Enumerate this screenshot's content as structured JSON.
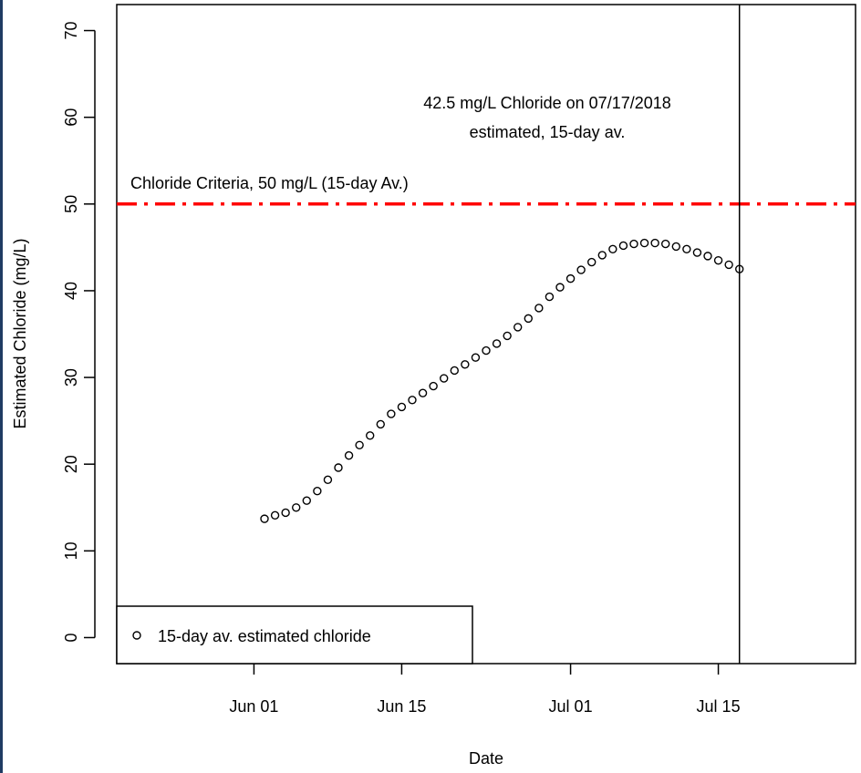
{
  "chart_data": {
    "type": "scatter",
    "xlabel": "Date",
    "ylabel": "Estimated Chloride (mg/L)",
    "x_type": "date",
    "xlim": [
      "2018-05-19",
      "2018-07-28"
    ],
    "ylim": [
      -3,
      73
    ],
    "x_ticks": [
      {
        "date": "2018-06-01",
        "label": "Jun 01"
      },
      {
        "date": "2018-06-15",
        "label": "Jun 15"
      },
      {
        "date": "2018-07-01",
        "label": "Jul 01"
      },
      {
        "date": "2018-07-15",
        "label": "Jul 15"
      }
    ],
    "y_ticks": [
      0,
      10,
      20,
      30,
      40,
      50,
      60,
      70
    ],
    "grid": false,
    "legend": {
      "position": "bottom-left",
      "entries": [
        "15-day av. estimated chloride"
      ]
    },
    "criteria_line": {
      "y": 50,
      "color": "#ff0000",
      "style": "dash-dot",
      "label": "Chloride Criteria, 50 mg/L (15-day Av.)"
    },
    "marker_line": {
      "x": "2018-07-17",
      "color": "#000000"
    },
    "annotation": {
      "line1": "42.5 mg/L Chloride on 07/17/2018",
      "line2": "estimated, 15-day av."
    },
    "series": [
      {
        "name": "15-day av. estimated chloride",
        "marker": "open-circle",
        "points": [
          [
            "2018-06-02",
            13.7
          ],
          [
            "2018-06-03",
            14.1
          ],
          [
            "2018-06-04",
            14.4
          ],
          [
            "2018-06-05",
            15.0
          ],
          [
            "2018-06-06",
            15.8
          ],
          [
            "2018-06-07",
            16.9
          ],
          [
            "2018-06-08",
            18.2
          ],
          [
            "2018-06-09",
            19.6
          ],
          [
            "2018-06-10",
            21.0
          ],
          [
            "2018-06-11",
            22.2
          ],
          [
            "2018-06-12",
            23.3
          ],
          [
            "2018-06-13",
            24.6
          ],
          [
            "2018-06-14",
            25.8
          ],
          [
            "2018-06-15",
            26.6
          ],
          [
            "2018-06-16",
            27.4
          ],
          [
            "2018-06-17",
            28.2
          ],
          [
            "2018-06-18",
            29.0
          ],
          [
            "2018-06-19",
            29.9
          ],
          [
            "2018-06-20",
            30.8
          ],
          [
            "2018-06-21",
            31.5
          ],
          [
            "2018-06-22",
            32.3
          ],
          [
            "2018-06-23",
            33.1
          ],
          [
            "2018-06-24",
            33.9
          ],
          [
            "2018-06-25",
            34.8
          ],
          [
            "2018-06-26",
            35.8
          ],
          [
            "2018-06-27",
            36.8
          ],
          [
            "2018-06-28",
            38.0
          ],
          [
            "2018-06-29",
            39.3
          ],
          [
            "2018-06-30",
            40.4
          ],
          [
            "2018-07-01",
            41.4
          ],
          [
            "2018-07-02",
            42.4
          ],
          [
            "2018-07-03",
            43.3
          ],
          [
            "2018-07-04",
            44.1
          ],
          [
            "2018-07-05",
            44.8
          ],
          [
            "2018-07-06",
            45.2
          ],
          [
            "2018-07-07",
            45.4
          ],
          [
            "2018-07-08",
            45.5
          ],
          [
            "2018-07-09",
            45.5
          ],
          [
            "2018-07-10",
            45.4
          ],
          [
            "2018-07-11",
            45.1
          ],
          [
            "2018-07-12",
            44.8
          ],
          [
            "2018-07-13",
            44.4
          ],
          [
            "2018-07-14",
            44.0
          ],
          [
            "2018-07-15",
            43.5
          ],
          [
            "2018-07-16",
            43.0
          ],
          [
            "2018-07-17",
            42.5
          ]
        ]
      }
    ]
  }
}
